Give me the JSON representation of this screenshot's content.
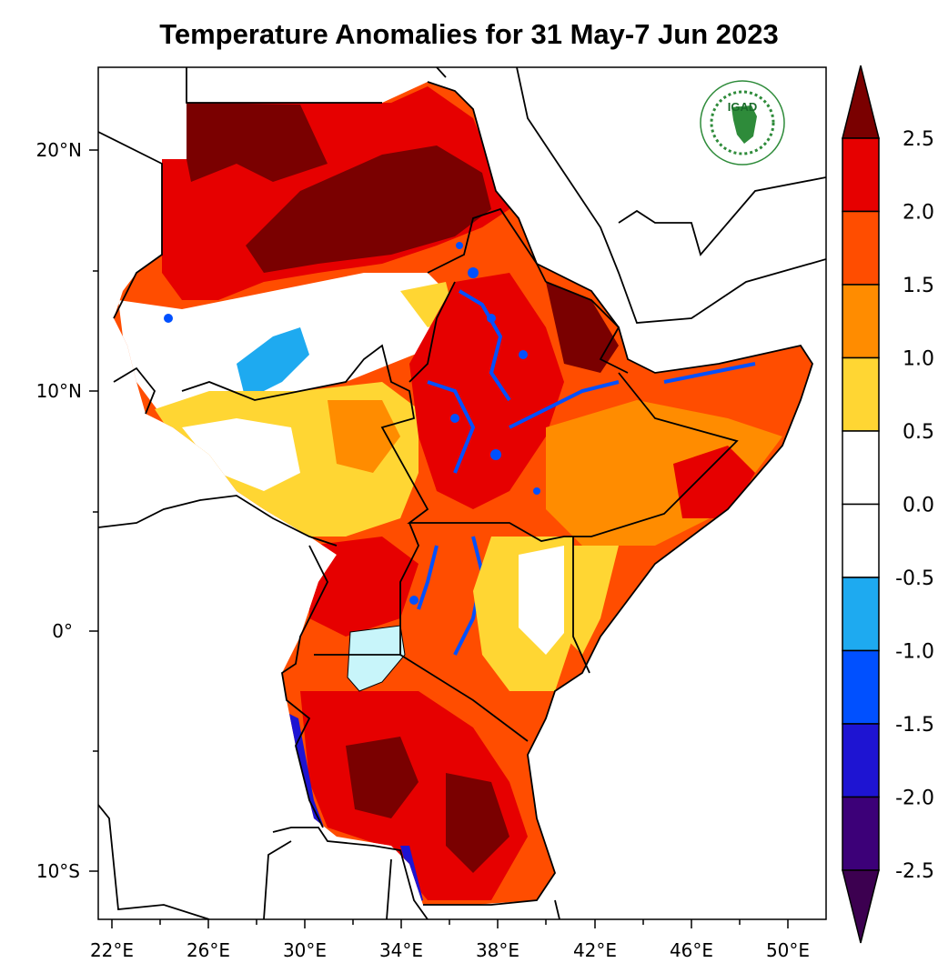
{
  "title": "Temperature Anomalies for 31 May-7 Jun 2023",
  "logo": {
    "text": "IGAD",
    "name": "igad-logo"
  },
  "map": {
    "lon_range": [
      21,
      51.5
    ],
    "lat_range": [
      -12,
      23.5
    ],
    "lon_ticks": [
      "22°E",
      "26°E",
      "30°E",
      "34°E",
      "38°E",
      "42°E",
      "46°E",
      "50°E"
    ],
    "lat_ticks": [
      "20°N",
      "10°N",
      "0°",
      "10°S"
    ],
    "variable": "temperature anomaly"
  },
  "colorbar": {
    "labels": [
      "2.5",
      "2.0",
      "1.5",
      "1.0",
      "0.5",
      "0.0",
      "-0.5",
      "-1.0",
      "-1.5",
      "-2.0",
      "-2.5"
    ],
    "colors": [
      "#7a0000",
      "#e60000",
      "#ff4d00",
      "#ff8c00",
      "#ffd633",
      "#ffffff",
      "#ffffff",
      "#1eaaf0",
      "#0050ff",
      "#1e14d2",
      "#3c0078",
      "#3c0050"
    ]
  },
  "colors": {
    "dark_red": "#7a0000",
    "red": "#e60000",
    "orange_red": "#ff4d00",
    "orange": "#ff8c00",
    "yellow": "#ffd633",
    "light_blue": "#1eaaf0",
    "blue": "#0050ff",
    "lake": "#c8f5fa"
  }
}
